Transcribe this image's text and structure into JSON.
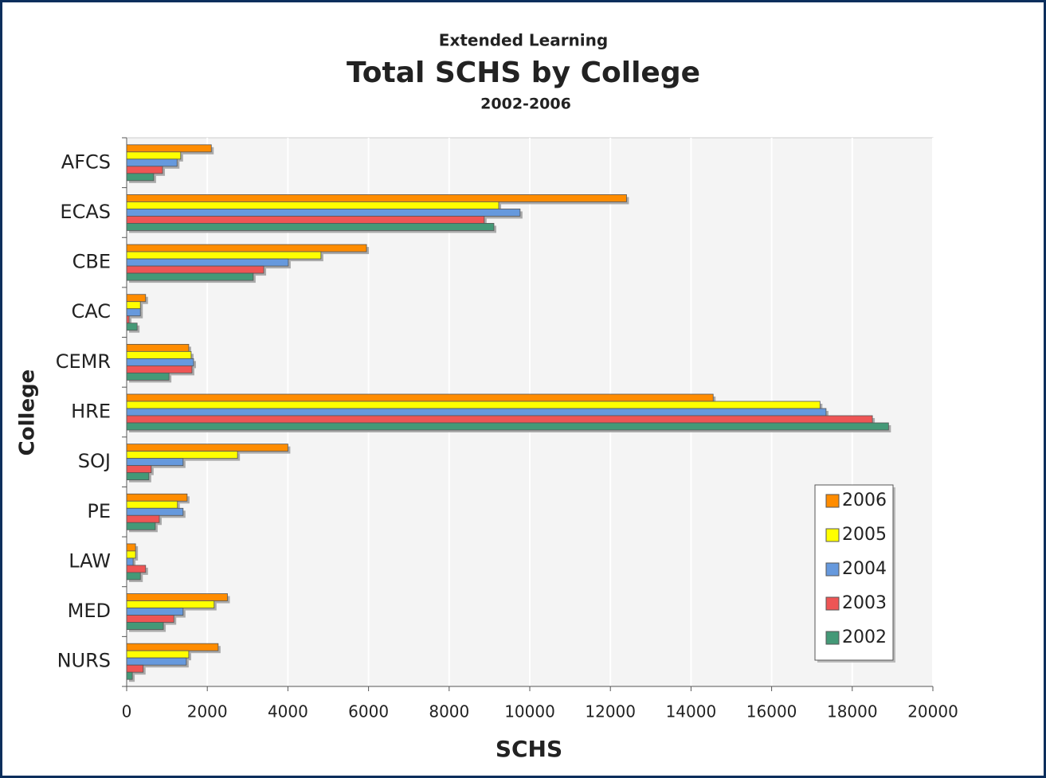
{
  "chart_data": {
    "type": "bar",
    "orientation": "horizontal",
    "supertitle": "Extended Learning",
    "title": "Total SCHS by College",
    "subtitle": "2002-2006",
    "x_label": "SCHS",
    "y_label": "College",
    "categories": [
      "AFCS",
      "ECAS",
      "CBE",
      "CAC",
      "CEMR",
      "HRE",
      "SOJ",
      "PE",
      "LAW",
      "MED",
      "NURS"
    ],
    "series": [
      {
        "name": "2006",
        "color": "#ff8c00",
        "values": [
          2100,
          12400,
          5950,
          470,
          1540,
          14550,
          4000,
          1500,
          220,
          2500,
          2270
        ]
      },
      {
        "name": "2005",
        "color": "#ffff00",
        "values": [
          1340,
          9230,
          4820,
          340,
          1600,
          17200,
          2750,
          1260,
          220,
          2170,
          1540
        ]
      },
      {
        "name": "2004",
        "color": "#6699dd",
        "values": [
          1250,
          9760,
          4010,
          340,
          1660,
          17350,
          1400,
          1400,
          160,
          1400,
          1480
        ]
      },
      {
        "name": "2003",
        "color": "#ee5555",
        "values": [
          890,
          8870,
          3400,
          60,
          1620,
          18500,
          610,
          810,
          470,
          1170,
          410
        ]
      },
      {
        "name": "2002",
        "color": "#449977",
        "values": [
          670,
          9110,
          3140,
          260,
          1050,
          18900,
          550,
          710,
          340,
          910,
          140
        ]
      }
    ],
    "xlim": [
      0,
      20000
    ],
    "xticks": [
      0,
      2000,
      4000,
      6000,
      8000,
      10000,
      12000,
      14000,
      16000,
      18000,
      20000
    ],
    "grid": true,
    "legend": "bottom-right"
  }
}
